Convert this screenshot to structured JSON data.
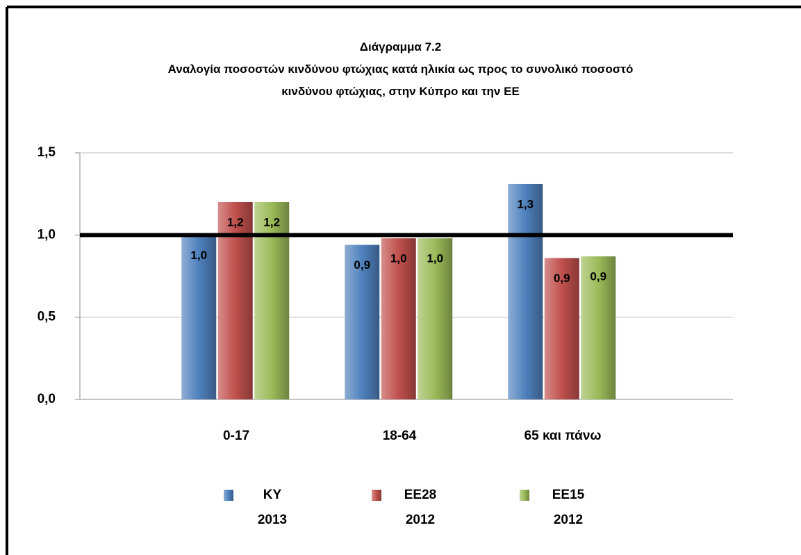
{
  "chart_data": {
    "type": "bar",
    "title": "Διάγραμμα 7.2",
    "subtitle": "Αναλογία ποσοστών κινδύνου φτώχιας κατά ηλικία ως προς το συνολικό ποσοστό\nκινδύνου φτώχιας, στην Κύπρο και την ΕΕ",
    "categories": [
      "0-17",
      "18-64",
      "65 και πάνω"
    ],
    "series": [
      {
        "name": "ΚΥ\n2013",
        "color": "#4f81bd",
        "values": [
          1.0,
          0.94,
          1.31
        ],
        "value_labels": [
          "1,0",
          "0,9",
          "1,3"
        ]
      },
      {
        "name": "ΕΕ28\n2012",
        "color": "#c0504d",
        "values": [
          1.2,
          0.98,
          0.86
        ],
        "value_labels": [
          "1,2",
          "1,0",
          "0,9"
        ]
      },
      {
        "name": "ΕΕ15\n2012",
        "color": "#9bbb59",
        "values": [
          1.2,
          0.98,
          0.87
        ],
        "value_labels": [
          "1,2",
          "1,0",
          "0,9"
        ]
      }
    ],
    "reference_line": 1.0,
    "ylim": [
      0,
      1.5
    ],
    "yticks": [
      {
        "value": 0,
        "label": "0,0"
      },
      {
        "value": 0.5,
        "label": "0,5"
      },
      {
        "value": 1.0,
        "label": "1,0"
      },
      {
        "value": 1.5,
        "label": "1,5"
      }
    ],
    "grid": true,
    "legend": "bottom"
  }
}
